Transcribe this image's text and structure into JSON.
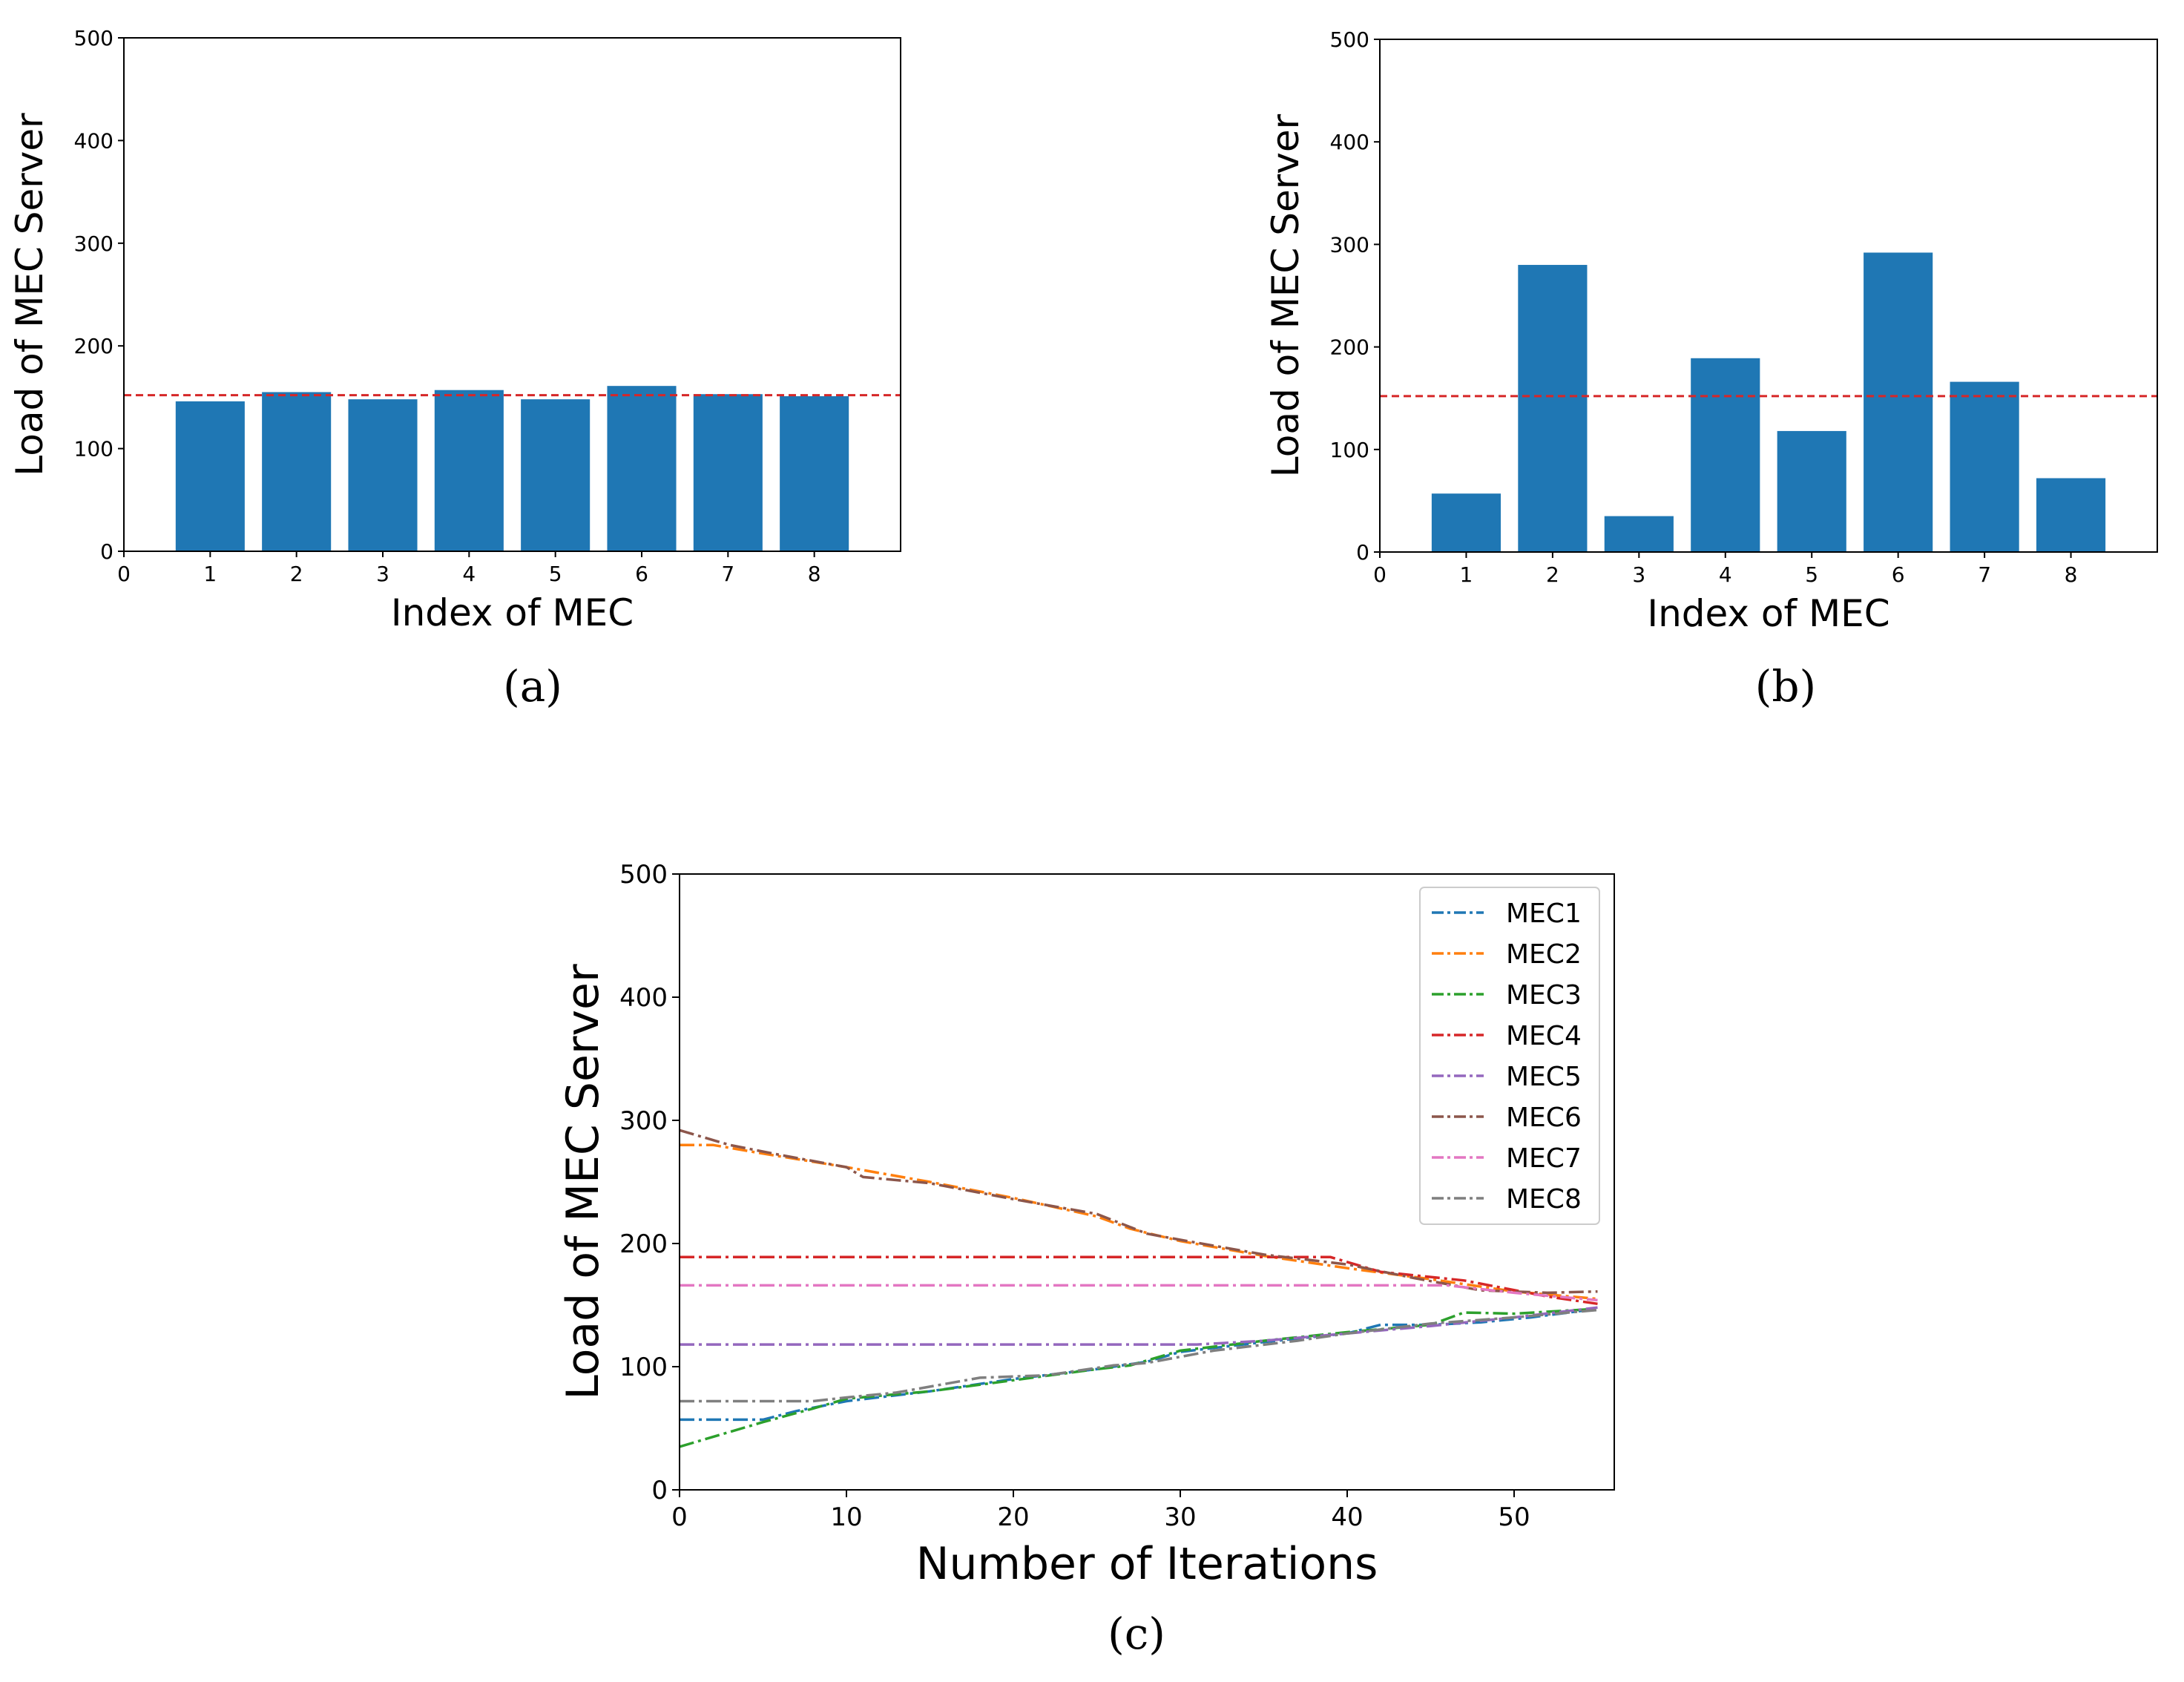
{
  "chart_data": [
    {
      "type": "bar",
      "panel": "(a)",
      "categories": [
        "1",
        "2",
        "3",
        "4",
        "5",
        "6",
        "7",
        "8"
      ],
      "values": [
        146,
        155,
        148,
        157,
        148,
        161,
        153,
        151
      ],
      "reference_line": 152,
      "xlabel": "Index of MEC",
      "ylabel": "Load of MEC Server",
      "xticks": [
        "0",
        "1",
        "2",
        "3",
        "4",
        "5",
        "6",
        "7",
        "8"
      ],
      "yticks": [
        "0",
        "100",
        "200",
        "300",
        "400",
        "500"
      ],
      "ylim": [
        0,
        500
      ],
      "bar_color": "#1f77b4",
      "ref_color": "#d62728"
    },
    {
      "type": "bar",
      "panel": "(b)",
      "categories": [
        "1",
        "2",
        "3",
        "4",
        "5",
        "6",
        "7",
        "8"
      ],
      "values": [
        57,
        280,
        35,
        189,
        118,
        292,
        166,
        72
      ],
      "reference_line": 152,
      "xlabel": "Index of MEC",
      "ylabel": "Load of MEC Server",
      "xticks": [
        "0",
        "1",
        "2",
        "3",
        "4",
        "5",
        "6",
        "7",
        "8"
      ],
      "yticks": [
        "0",
        "100",
        "200",
        "300",
        "400",
        "500"
      ],
      "ylim": [
        0,
        500
      ],
      "bar_color": "#1f77b4",
      "ref_color": "#d62728"
    },
    {
      "type": "line",
      "panel": "(c)",
      "xlabel": "Number of Iterations",
      "ylabel": "Load of MEC Server",
      "xticks": [
        "0",
        "10",
        "20",
        "30",
        "40",
        "50"
      ],
      "yticks": [
        "0",
        "100",
        "200",
        "300",
        "400",
        "500"
      ],
      "xlim": [
        0,
        56
      ],
      "ylim": [
        0,
        500
      ],
      "legend_position": "top-right",
      "series": [
        {
          "name": "MEC1",
          "color": "#1f77b4",
          "points": [
            [
              0,
              57
            ],
            [
              3,
              57
            ],
            [
              5,
              57
            ],
            [
              7,
              64
            ],
            [
              10,
              72
            ],
            [
              15,
              80
            ],
            [
              20,
              90
            ],
            [
              25,
              98
            ],
            [
              28,
              104
            ],
            [
              30,
              112
            ],
            [
              35,
              120
            ],
            [
              40,
              127
            ],
            [
              42,
              134
            ],
            [
              45,
              134
            ],
            [
              48,
              136
            ],
            [
              51,
              140
            ],
            [
              55,
              147
            ]
          ]
        },
        {
          "name": "MEC2",
          "color": "#ff7f0e",
          "points": [
            [
              0,
              280
            ],
            [
              2,
              280
            ],
            [
              5,
              273
            ],
            [
              10,
              262
            ],
            [
              15,
              250
            ],
            [
              20,
              237
            ],
            [
              25,
              222
            ],
            [
              27,
              212
            ],
            [
              30,
              202
            ],
            [
              35,
              190
            ],
            [
              40,
              180
            ],
            [
              45,
              171
            ],
            [
              50,
              161
            ],
            [
              55,
              155
            ]
          ]
        },
        {
          "name": "MEC3",
          "color": "#2ca02c",
          "points": [
            [
              0,
              35
            ],
            [
              3,
              47
            ],
            [
              5,
              55
            ],
            [
              8,
              66
            ],
            [
              10,
              74
            ],
            [
              15,
              80
            ],
            [
              20,
              89
            ],
            [
              25,
              98
            ],
            [
              27,
              101
            ],
            [
              30,
              113
            ],
            [
              35,
              121
            ],
            [
              40,
              128
            ],
            [
              45,
              134
            ],
            [
              47,
              144
            ],
            [
              50,
              143
            ],
            [
              55,
              147
            ]
          ]
        },
        {
          "name": "MEC4",
          "color": "#d62728",
          "points": [
            [
              0,
              189
            ],
            [
              39,
              189
            ],
            [
              42,
              177
            ],
            [
              47,
              170
            ],
            [
              52,
              157
            ],
            [
              55,
              151
            ]
          ]
        },
        {
          "name": "MEC5",
          "color": "#9467bd",
          "points": [
            [
              0,
              118
            ],
            [
              31,
              118
            ],
            [
              35,
              121
            ],
            [
              40,
              127
            ],
            [
              45,
              133
            ],
            [
              50,
              140
            ],
            [
              55,
              148
            ]
          ]
        },
        {
          "name": "MEC6",
          "color": "#8c564b",
          "points": [
            [
              0,
              292
            ],
            [
              3,
              280
            ],
            [
              6,
              272
            ],
            [
              10,
              262
            ],
            [
              11,
              254
            ],
            [
              15,
              249
            ],
            [
              20,
              236
            ],
            [
              25,
              224
            ],
            [
              28,
              208
            ],
            [
              30,
              203
            ],
            [
              35,
              191
            ],
            [
              40,
              183
            ],
            [
              44,
              172
            ],
            [
              48,
              162
            ],
            [
              52,
              160
            ],
            [
              55,
              161
            ]
          ]
        },
        {
          "name": "MEC7",
          "color": "#e377c2",
          "points": [
            [
              0,
              166
            ],
            [
              46,
              166
            ],
            [
              50,
              160
            ],
            [
              55,
              154
            ]
          ]
        },
        {
          "name": "MEC8",
          "color": "#7f7f7f",
          "points": [
            [
              0,
              72
            ],
            [
              8,
              72
            ],
            [
              10,
              75
            ],
            [
              13,
              79
            ],
            [
              18,
              91
            ],
            [
              22,
              93
            ],
            [
              26,
              101
            ],
            [
              28,
              103
            ],
            [
              32,
              113
            ],
            [
              37,
              121
            ],
            [
              40,
              127
            ],
            [
              45,
              135
            ],
            [
              50,
              140
            ],
            [
              55,
              146
            ]
          ]
        }
      ]
    }
  ],
  "captions": {
    "a": "(a)",
    "b": "(b)",
    "c": "(c)"
  }
}
